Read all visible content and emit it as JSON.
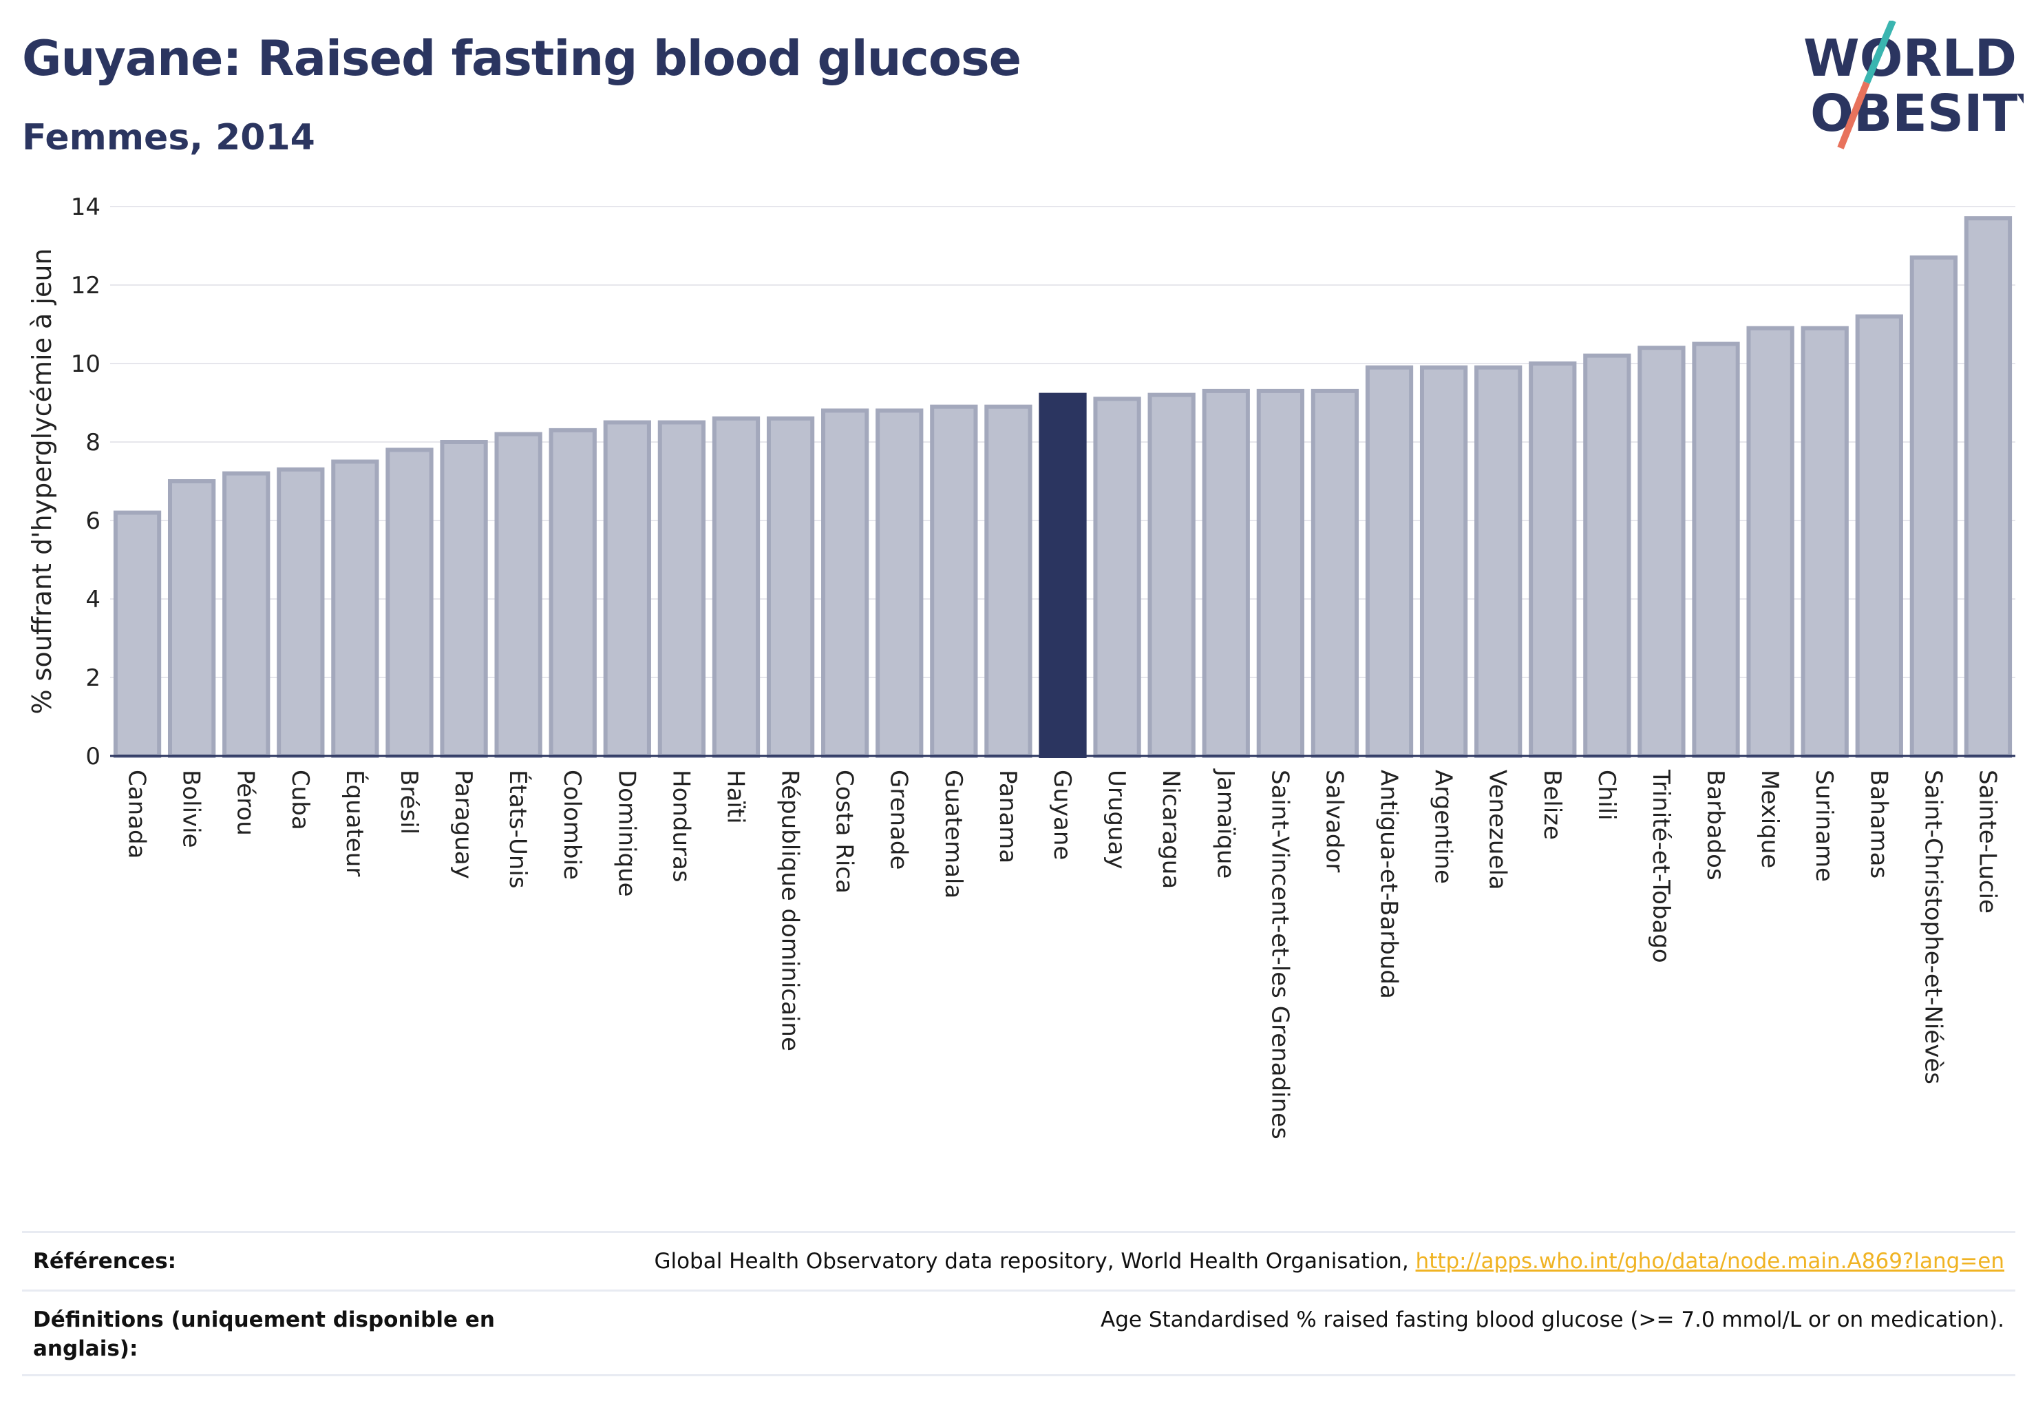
{
  "header": {
    "title": "Guyane: Raised fasting blood glucose",
    "subtitle": "Femmes, 2014"
  },
  "logo": {
    "line1": "WORLD",
    "line2": "OBESITY",
    "accent_colors": [
      "#3ab5b0",
      "#e8725c"
    ]
  },
  "colors": {
    "bar": "#bcc0cf",
    "bar_stroke": "#a3a8bc",
    "highlight": "#2b3560",
    "grid": "#e6e6ec"
  },
  "chart_data": {
    "type": "bar",
    "ylabel": "% souffrant d'hyperglycémie à jeun",
    "ylim": [
      0,
      14
    ],
    "yticks": [
      0,
      2,
      4,
      6,
      8,
      10,
      12,
      14
    ],
    "highlight": "Guyane",
    "categories": [
      "Canada",
      "Bolivie",
      "Pérou",
      "Cuba",
      "Équateur",
      "Brésil",
      "Paraguay",
      "États-Unis",
      "Colombie",
      "Dominique",
      "Honduras",
      "Haïti",
      "République dominicaine",
      "Costa Rica",
      "Grenade",
      "Guatemala",
      "Panama",
      "Guyane",
      "Uruguay",
      "Nicaragua",
      "Jamaïque",
      "Saint-Vincent-et-les Grenadines",
      "Salvador",
      "Antigua-et-Barbuda",
      "Argentine",
      "Venezuela",
      "Belize",
      "Chili",
      "Trinité-et-Tobago",
      "Barbados",
      "Mexique",
      "Suriname",
      "Bahamas",
      "Saint-Christophe-et-Niévès",
      "Sainte-Lucie"
    ],
    "values": [
      6.2,
      7.0,
      7.2,
      7.3,
      7.5,
      7.8,
      8.0,
      8.2,
      8.3,
      8.5,
      8.5,
      8.6,
      8.6,
      8.8,
      8.8,
      8.9,
      8.9,
      9.2,
      9.1,
      9.2,
      9.3,
      9.3,
      9.3,
      9.9,
      9.9,
      9.9,
      10.0,
      10.2,
      10.4,
      10.5,
      10.9,
      10.9,
      11.2,
      12.7,
      13.7
    ]
  },
  "footer": {
    "references_label": "Références:",
    "references_text": "Global Health Observatory data repository, World Health Organisation, ",
    "references_link": "http://apps.who.int/gho/data/node.main.A869?lang=en",
    "definitions_label": "Définitions (uniquement disponible en anglais):",
    "definitions_text": "Age Standardised % raised fasting blood glucose (>= 7.0 mmol/L or on medication)."
  }
}
